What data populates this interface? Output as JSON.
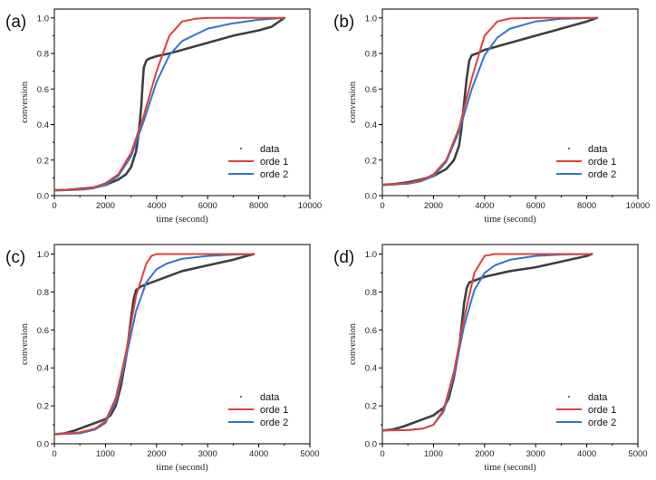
{
  "colors": {
    "data": "#3f3f3f",
    "orde1": "#e0413a",
    "orde2": "#2f77d0",
    "axis": "#000000"
  },
  "chart_data": [
    {
      "panel": "(a)",
      "type": "line",
      "xlabel": "time (second)",
      "ylabel": "conversion",
      "xlim": [
        0,
        10000
      ],
      "ylim": [
        0,
        1.05
      ],
      "xticks": [
        0,
        2000,
        4000,
        6000,
        8000,
        10000
      ],
      "xtick_labels": [
        "0",
        "2000",
        "4000",
        "6000",
        "8000",
        "10000"
      ],
      "yticks": [
        0,
        0.2,
        0.4,
        0.6,
        0.8,
        1.0
      ],
      "ytick_labels": [
        "0.0",
        "0.2",
        "0.4",
        "0.6",
        "0.8",
        "1.0"
      ],
      "legend": {
        "placement": "bottom-right",
        "entries": [
          "data",
          "orde 1",
          "orde 2"
        ]
      },
      "series": [
        {
          "name": "data",
          "x": [
            0,
            500,
            1000,
            1500,
            2000,
            2500,
            2800,
            3000,
            3200,
            3300,
            3400,
            3450,
            3500,
            3600,
            3700,
            4000,
            4500,
            5000,
            6000,
            7000,
            8000,
            8500,
            9000
          ],
          "y": [
            0.03,
            0.032,
            0.038,
            0.045,
            0.06,
            0.09,
            0.12,
            0.16,
            0.25,
            0.35,
            0.5,
            0.62,
            0.72,
            0.76,
            0.77,
            0.785,
            0.8,
            0.82,
            0.86,
            0.9,
            0.93,
            0.95,
            1.0
          ]
        },
        {
          "name": "orde 1",
          "x": [
            0,
            500,
            1000,
            1500,
            2000,
            2500,
            3000,
            3500,
            4000,
            4500,
            5000,
            5500,
            6000,
            7000,
            8000,
            9000
          ],
          "y": [
            0.03,
            0.033,
            0.036,
            0.045,
            0.07,
            0.12,
            0.24,
            0.45,
            0.7,
            0.9,
            0.98,
            0.995,
            1.0,
            1.0,
            1.0,
            1.0
          ]
        },
        {
          "name": "orde 2",
          "x": [
            0,
            500,
            1000,
            1500,
            2000,
            2500,
            3000,
            3500,
            4000,
            4500,
            5000,
            6000,
            7000,
            8000,
            9000
          ],
          "y": [
            0.03,
            0.031,
            0.033,
            0.04,
            0.06,
            0.11,
            0.22,
            0.42,
            0.64,
            0.79,
            0.87,
            0.94,
            0.97,
            0.99,
            1.0
          ]
        }
      ]
    },
    {
      "panel": "(b)",
      "type": "line",
      "xlabel": "time (second)",
      "ylabel": "conversion",
      "xlim": [
        0,
        10000
      ],
      "ylim": [
        0,
        1.05
      ],
      "xticks": [
        0,
        2000,
        4000,
        6000,
        8000,
        10000
      ],
      "xtick_labels": [
        "0",
        "2000",
        "4000",
        "6000",
        "8000",
        "10000"
      ],
      "yticks": [
        0,
        0.2,
        0.4,
        0.6,
        0.8,
        1.0
      ],
      "ytick_labels": [
        "0.0",
        "0.2",
        "0.4",
        "0.6",
        "0.8",
        "1.0"
      ],
      "legend": {
        "placement": "bottom-right",
        "entries": [
          "data",
          "orde 1",
          "orde 2"
        ]
      },
      "series": [
        {
          "name": "data",
          "x": [
            0,
            500,
            1000,
            1500,
            2000,
            2500,
            2800,
            3000,
            3100,
            3200,
            3300,
            3400,
            3500,
            3700,
            4000,
            5000,
            6000,
            7000,
            8000,
            8400
          ],
          "y": [
            0.06,
            0.065,
            0.075,
            0.09,
            0.11,
            0.15,
            0.2,
            0.28,
            0.38,
            0.52,
            0.66,
            0.76,
            0.79,
            0.8,
            0.82,
            0.86,
            0.9,
            0.94,
            0.98,
            1.0
          ]
        },
        {
          "name": "orde 1",
          "x": [
            0,
            500,
            1000,
            1500,
            2000,
            2500,
            3000,
            3500,
            4000,
            4500,
            5000,
            6000,
            7000,
            8400
          ],
          "y": [
            0.06,
            0.065,
            0.07,
            0.085,
            0.12,
            0.2,
            0.38,
            0.66,
            0.9,
            0.98,
            0.997,
            1.0,
            1.0,
            1.0
          ]
        },
        {
          "name": "orde 2",
          "x": [
            0,
            500,
            1000,
            1500,
            2000,
            2500,
            3000,
            3500,
            4000,
            4500,
            5000,
            6000,
            7000,
            8400
          ],
          "y": [
            0.06,
            0.062,
            0.067,
            0.08,
            0.11,
            0.19,
            0.36,
            0.6,
            0.79,
            0.89,
            0.94,
            0.98,
            0.995,
            1.0
          ]
        }
      ]
    },
    {
      "panel": "(c)",
      "type": "line",
      "xlabel": "time (second)",
      "ylabel": "conversion",
      "xlim": [
        0,
        5000
      ],
      "ylim": [
        0,
        1.05
      ],
      "xticks": [
        0,
        1000,
        2000,
        3000,
        4000,
        5000
      ],
      "xtick_labels": [
        "0",
        "1000",
        "2000",
        "3000",
        "4000",
        "5000"
      ],
      "yticks": [
        0,
        0.2,
        0.4,
        0.6,
        0.8,
        1.0
      ],
      "ytick_labels": [
        "0.0",
        "0.2",
        "0.4",
        "0.6",
        "0.8",
        "1.0"
      ],
      "legend": {
        "placement": "bottom-right",
        "entries": [
          "data",
          "orde 1",
          "orde 2"
        ]
      },
      "series": [
        {
          "name": "data",
          "x": [
            0,
            200,
            400,
            600,
            800,
            1000,
            1100,
            1200,
            1300,
            1400,
            1450,
            1500,
            1550,
            1600,
            1700,
            2000,
            2500,
            3000,
            3500,
            3900
          ],
          "y": [
            0.05,
            0.055,
            0.07,
            0.09,
            0.11,
            0.13,
            0.15,
            0.2,
            0.3,
            0.45,
            0.55,
            0.66,
            0.76,
            0.81,
            0.83,
            0.86,
            0.91,
            0.94,
            0.97,
            1.0
          ]
        },
        {
          "name": "orde 1",
          "x": [
            0,
            500,
            800,
            1000,
            1200,
            1400,
            1600,
            1800,
            1900,
            2000,
            2500,
            3000,
            3900
          ],
          "y": [
            0.05,
            0.06,
            0.08,
            0.12,
            0.24,
            0.48,
            0.78,
            0.95,
            0.99,
            1.0,
            1.0,
            1.0,
            1.0
          ]
        },
        {
          "name": "orde 2",
          "x": [
            0,
            500,
            800,
            1000,
            1200,
            1400,
            1600,
            1800,
            2000,
            2200,
            2500,
            3000,
            3500,
            3900
          ],
          "y": [
            0.05,
            0.055,
            0.075,
            0.11,
            0.22,
            0.45,
            0.7,
            0.85,
            0.92,
            0.95,
            0.975,
            0.99,
            0.997,
            1.0
          ]
        }
      ]
    },
    {
      "panel": "(d)",
      "type": "line",
      "xlabel": "time (second)",
      "ylabel": "conversion",
      "xlim": [
        0,
        5000
      ],
      "ylim": [
        0,
        1.05
      ],
      "xticks": [
        0,
        1000,
        2000,
        3000,
        4000,
        5000
      ],
      "xtick_labels": [
        "0",
        "1000",
        "2000",
        "3000",
        "4000",
        "5000"
      ],
      "yticks": [
        0,
        0.2,
        0.4,
        0.6,
        0.8,
        1.0
      ],
      "ytick_labels": [
        "0.0",
        "0.2",
        "0.4",
        "0.6",
        "0.8",
        "1.0"
      ],
      "legend": {
        "placement": "bottom-right",
        "entries": [
          "data",
          "orde 1",
          "orde 2"
        ]
      },
      "series": [
        {
          "name": "data",
          "x": [
            0,
            200,
            400,
            600,
            800,
            1000,
            1200,
            1300,
            1400,
            1500,
            1550,
            1600,
            1650,
            1700,
            1800,
            2000,
            2500,
            3000,
            3500,
            4000,
            4100
          ],
          "y": [
            0.07,
            0.075,
            0.09,
            0.11,
            0.13,
            0.15,
            0.19,
            0.24,
            0.35,
            0.5,
            0.62,
            0.74,
            0.82,
            0.85,
            0.86,
            0.88,
            0.91,
            0.93,
            0.96,
            0.99,
            1.0
          ]
        },
        {
          "name": "orde 1",
          "x": [
            0,
            500,
            800,
            1000,
            1200,
            1400,
            1600,
            1800,
            2000,
            2200,
            2500,
            3000,
            4100
          ],
          "y": [
            0.07,
            0.072,
            0.08,
            0.1,
            0.18,
            0.38,
            0.66,
            0.9,
            0.99,
            1.0,
            1.0,
            1.0,
            1.0
          ]
        },
        {
          "name": "orde 2",
          "x": [
            0,
            500,
            800,
            1000,
            1200,
            1400,
            1600,
            1800,
            2000,
            2200,
            2500,
            3000,
            3500,
            4100
          ],
          "y": [
            0.07,
            0.072,
            0.08,
            0.1,
            0.17,
            0.36,
            0.62,
            0.81,
            0.9,
            0.94,
            0.97,
            0.99,
            0.997,
            1.0
          ]
        }
      ]
    }
  ]
}
